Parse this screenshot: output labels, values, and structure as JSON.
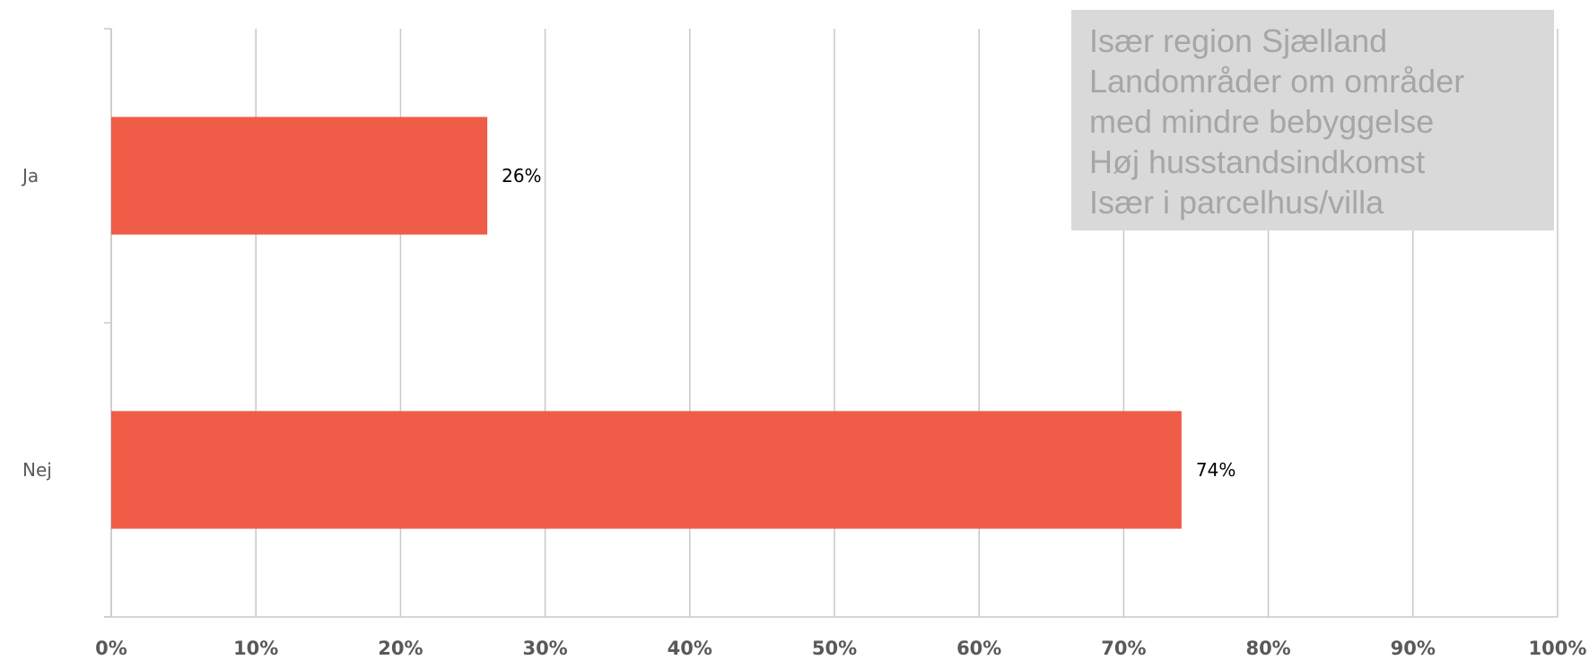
{
  "chart_data": {
    "type": "bar",
    "orientation": "horizontal",
    "categories": [
      "Ja",
      "Nej"
    ],
    "values": [
      26,
      74
    ],
    "data_labels": [
      "26%",
      "74%"
    ],
    "xlim": [
      0,
      100
    ],
    "x_ticks": [
      "0%",
      "10%",
      "20%",
      "30%",
      "40%",
      "50%",
      "60%",
      "70%",
      "80%",
      "90%",
      "100%"
    ],
    "grid": true,
    "bar_color": "#ef5c48",
    "grid_color": "#c8c8c8",
    "title": "",
    "xlabel": "",
    "ylabel": ""
  },
  "annotation": {
    "lines": [
      "Især region Sjælland",
      "Landområder om områder",
      "med mindre bebyggelse",
      "Høj husstandsindkomst",
      "Især i parcelhus/villa"
    ]
  }
}
